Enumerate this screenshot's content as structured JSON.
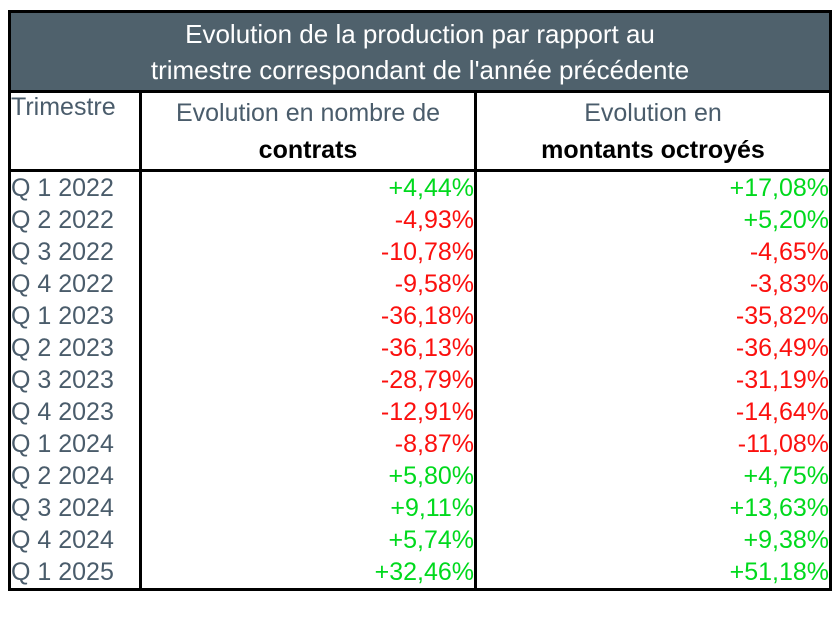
{
  "title": {
    "line1": "Evolution de la production par rapport au",
    "line2": "trimestre correspondant de l'année précédente"
  },
  "columns": {
    "trimestre": "Trimestre",
    "contrats_line1": "Evolution en nombre de",
    "contrats_line2": "contrats",
    "montants_line1": "Evolution en",
    "montants_line2": "montants octroyés"
  },
  "colors": {
    "header_bg": "#4F616C",
    "slate_text": "#4A5C6B",
    "positive": "#00D91D",
    "negative": "#FB100E",
    "border": "#000000"
  },
  "rows": [
    {
      "trimestre": "Q 1 2022",
      "contrats": "+4,44%",
      "montants": "+17,08%"
    },
    {
      "trimestre": "Q 2 2022",
      "contrats": "-4,93%",
      "montants": "+5,20%"
    },
    {
      "trimestre": "Q 3 2022",
      "contrats": "-10,78%",
      "montants": "-4,65%"
    },
    {
      "trimestre": "Q 4 2022",
      "contrats": "-9,58%",
      "montants": "-3,83%"
    },
    {
      "trimestre": "Q 1 2023",
      "contrats": "-36,18%",
      "montants": "-35,82%"
    },
    {
      "trimestre": "Q 2 2023",
      "contrats": "-36,13%",
      "montants": "-36,49%"
    },
    {
      "trimestre": "Q 3 2023",
      "contrats": "-28,79%",
      "montants": "-31,19%"
    },
    {
      "trimestre": "Q 4 2023",
      "contrats": "-12,91%",
      "montants": "-14,64%"
    },
    {
      "trimestre": "Q 1 2024",
      "contrats": "-8,87%",
      "montants": "-11,08%"
    },
    {
      "trimestre": "Q 2 2024",
      "contrats": "+5,80%",
      "montants": "+4,75%"
    },
    {
      "trimestre": "Q 3 2024",
      "contrats": "+9,11%",
      "montants": "+13,63%"
    },
    {
      "trimestre": "Q 4 2024",
      "contrats": "+5,74%",
      "montants": "+9,38%"
    },
    {
      "trimestre": "Q 1 2025",
      "contrats": "+32,46%",
      "montants": "+51,18%"
    }
  ],
  "chart_data": {
    "type": "table",
    "title": "Evolution de la production par rapport au trimestre correspondant de l'année précédente",
    "columns": [
      "Trimestre",
      "Evolution en nombre de contrats",
      "Evolution en montants octroyés"
    ],
    "unit": "percent",
    "rows": [
      [
        "Q 1 2022",
        4.44,
        17.08
      ],
      [
        "Q 2 2022",
        -4.93,
        5.2
      ],
      [
        "Q 3 2022",
        -10.78,
        -4.65
      ],
      [
        "Q 4 2022",
        -9.58,
        -3.83
      ],
      [
        "Q 1 2023",
        -36.18,
        -35.82
      ],
      [
        "Q 2 2023",
        -36.13,
        -36.49
      ],
      [
        "Q 3 2023",
        -28.79,
        -31.19
      ],
      [
        "Q 4 2023",
        -12.91,
        -14.64
      ],
      [
        "Q 1 2024",
        -8.87,
        -11.08
      ],
      [
        "Q 2 2024",
        5.8,
        4.75
      ],
      [
        "Q 3 2024",
        9.11,
        13.63
      ],
      [
        "Q 4 2024",
        5.74,
        9.38
      ],
      [
        "Q 1 2025",
        32.46,
        51.18
      ]
    ],
    "value_color_rule": "positive=green, negative=red"
  }
}
